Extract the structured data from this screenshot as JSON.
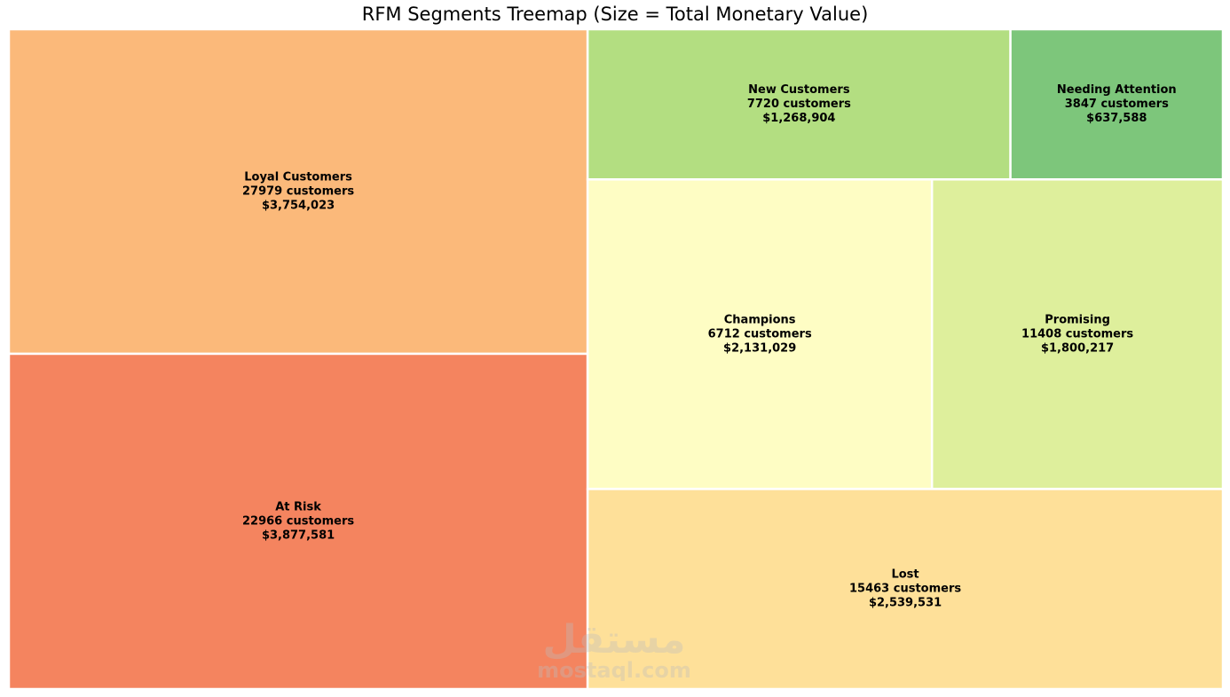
{
  "chart_data": {
    "type": "treemap",
    "title": "RFM Segments Treemap (Size = Total Monetary Value)",
    "segments": [
      {
        "name": "Loyal Customers",
        "customers_label": "27979 customers",
        "value_label": "$3,754,023",
        "customers": 27979,
        "value": 3754023,
        "color": "#FBB97A"
      },
      {
        "name": "At Risk",
        "customers_label": "22966 customers",
        "value_label": "$3,877,581",
        "customers": 22966,
        "value": 3877581,
        "color": "#F4845F"
      },
      {
        "name": "New Customers",
        "customers_label": "7720 customers",
        "value_label": "$1,268,904",
        "customers": 7720,
        "value": 1268904,
        "color": "#B3DE81"
      },
      {
        "name": "Needing Attention",
        "customers_label": "3847 customers",
        "value_label": "$637,588",
        "customers": 3847,
        "value": 637588,
        "color": "#7DC67B"
      },
      {
        "name": "Champions",
        "customers_label": "6712 customers",
        "value_label": "$2,131,029",
        "customers": 6712,
        "value": 2131029,
        "color": "#FEFDC4"
      },
      {
        "name": "Promising",
        "customers_label": "11408 customers",
        "value_label": "$1,800,217",
        "customers": 11408,
        "value": 1800217,
        "color": "#DEEF9C"
      },
      {
        "name": "Lost",
        "customers_label": "15463 customers",
        "value_label": "$2,539,531",
        "customers": 15463,
        "value": 2539531,
        "color": "#FEE099"
      }
    ]
  },
  "watermark": {
    "arabic": "مستقل",
    "latin": "mostaql.com",
    "color": "#BDBDBD"
  }
}
